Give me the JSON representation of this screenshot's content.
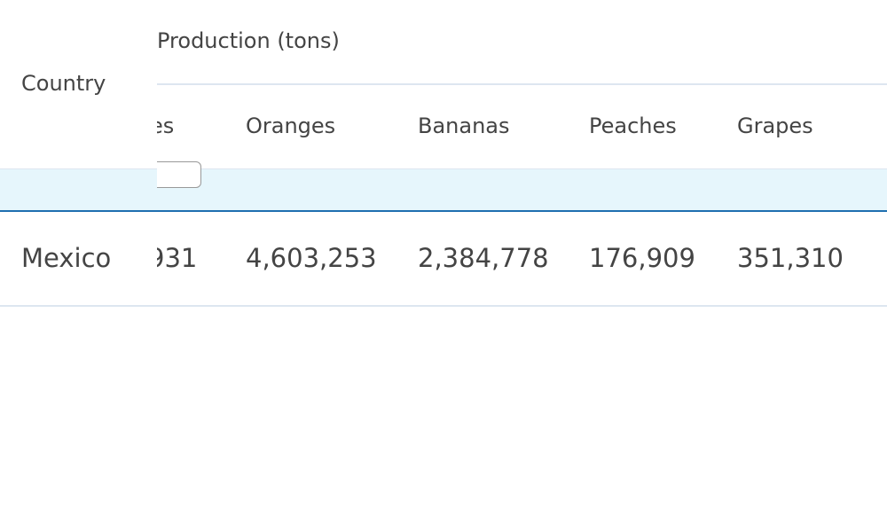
{
  "table": {
    "group_header": "Production (tons)",
    "columns": [
      "Country",
      "es",
      "Oranges",
      "Bananas",
      "Peaches",
      "Grapes"
    ],
    "rows": [
      [
        "Mexico",
        "931",
        "4,603,253",
        "2,384,778",
        "176,909",
        "351,310"
      ]
    ]
  }
}
